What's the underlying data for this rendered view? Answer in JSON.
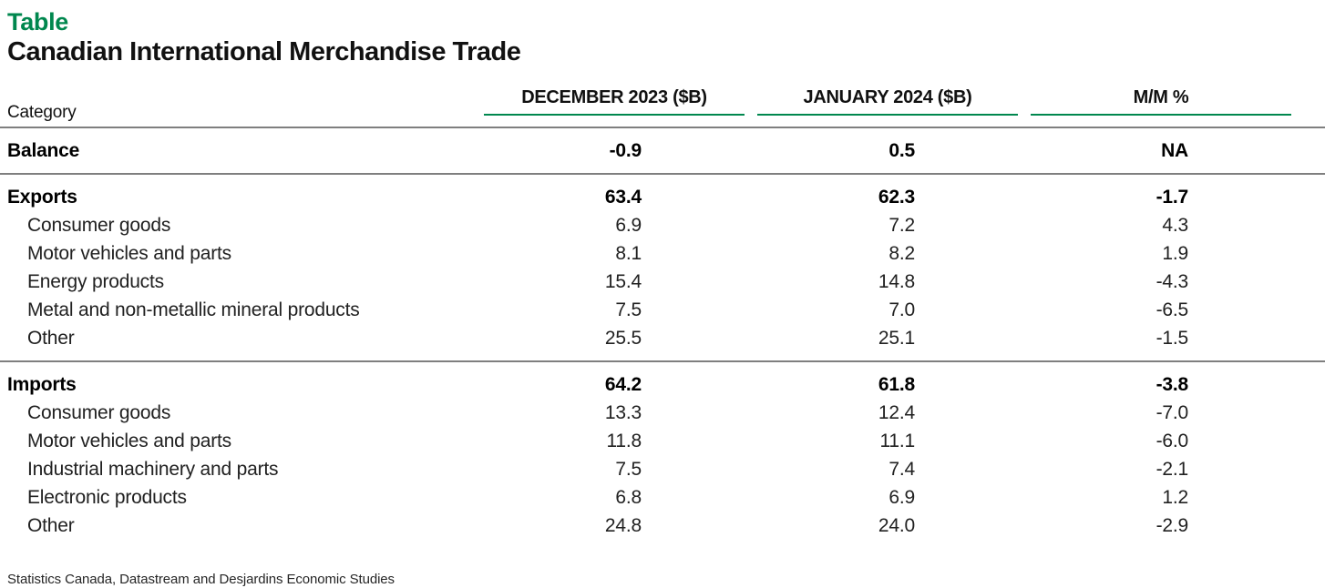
{
  "header": {
    "kicker": "Table",
    "title": "Canadian International Merchandise Trade"
  },
  "table": {
    "category_header": "Category",
    "columns": [
      "DECEMBER 2023 ($B)",
      "JANUARY 2024 ($B)",
      "M/M %"
    ],
    "sections": [
      {
        "rows": [
          {
            "label": "Balance",
            "dec": "-0.9",
            "jan": "0.5",
            "mm": "NA",
            "bold": true
          }
        ]
      },
      {
        "rows": [
          {
            "label": "Exports",
            "dec": "63.4",
            "jan": "62.3",
            "mm": "-1.7",
            "bold": true
          },
          {
            "label": "Consumer goods",
            "dec": "6.9",
            "jan": "7.2",
            "mm": "4.3"
          },
          {
            "label": "Motor vehicles and parts",
            "dec": "8.1",
            "jan": "8.2",
            "mm": "1.9"
          },
          {
            "label": "Energy products",
            "dec": "15.4",
            "jan": "14.8",
            "mm": "-4.3"
          },
          {
            "label": "Metal and non-metallic mineral products",
            "dec": "7.5",
            "jan": "7.0",
            "mm": "-6.5"
          },
          {
            "label": "Other",
            "dec": "25.5",
            "jan": "25.1",
            "mm": "-1.5"
          }
        ]
      },
      {
        "rows": [
          {
            "label": "Imports",
            "dec": "64.2",
            "jan": "61.8",
            "mm": "-3.8",
            "bold": true
          },
          {
            "label": "Consumer goods",
            "dec": "13.3",
            "jan": "12.4",
            "mm": "-7.0"
          },
          {
            "label": "Motor vehicles and parts",
            "dec": "11.8",
            "jan": "11.1",
            "mm": "-6.0"
          },
          {
            "label": "Industrial machinery and parts",
            "dec": "7.5",
            "jan": "7.4",
            "mm": "-2.1"
          },
          {
            "label": "Electronic products",
            "dec": "6.8",
            "jan": "6.9",
            "mm": "1.2"
          },
          {
            "label": "Other",
            "dec": "24.8",
            "jan": "24.0",
            "mm": "-2.9"
          }
        ]
      }
    ]
  },
  "footer": {
    "source": "Statistics Canada, Datastream and Desjardins Economic Studies"
  },
  "colors": {
    "accent_green": "#00874e",
    "rule_gray": "#7f7f7f"
  },
  "chart_data": {
    "type": "table",
    "title": "Canadian International Merchandise Trade",
    "columns": [
      "Category",
      "DECEMBER 2023 ($B)",
      "JANUARY 2024 ($B)",
      "M/M %"
    ],
    "rows": [
      [
        "Balance",
        -0.9,
        0.5,
        "NA"
      ],
      [
        "Exports",
        63.4,
        62.3,
        -1.7
      ],
      [
        "Consumer goods (exports)",
        6.9,
        7.2,
        4.3
      ],
      [
        "Motor vehicles and parts (exports)",
        8.1,
        8.2,
        1.9
      ],
      [
        "Energy products",
        15.4,
        14.8,
        -4.3
      ],
      [
        "Metal and non-metallic mineral products",
        7.5,
        7.0,
        -6.5
      ],
      [
        "Other (exports)",
        25.5,
        25.1,
        -1.5
      ],
      [
        "Imports",
        64.2,
        61.8,
        -3.8
      ],
      [
        "Consumer goods (imports)",
        13.3,
        12.4,
        -7.0
      ],
      [
        "Motor vehicles and parts (imports)",
        11.8,
        11.1,
        -6.0
      ],
      [
        "Industrial machinery and parts",
        7.5,
        7.4,
        -2.1
      ],
      [
        "Electronic products",
        6.8,
        6.9,
        1.2
      ],
      [
        "Other (imports)",
        24.8,
        24.0,
        -2.9
      ]
    ],
    "source": "Statistics Canada, Datastream and Desjardins Economic Studies"
  }
}
